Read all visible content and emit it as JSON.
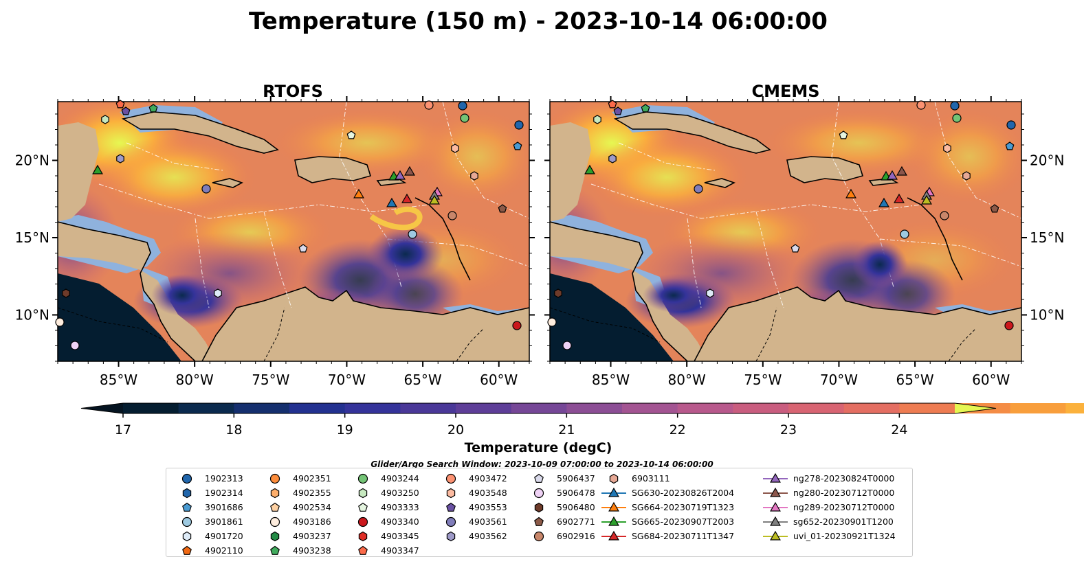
{
  "figure": {
    "title": "Temperature (150 m) - 2023-10-14 06:00:00",
    "search_window": "Glider/Argo Search Window: 2023-10-09 07:00:00 to 2023-10-14 06:00:00"
  },
  "chart_data": [
    {
      "type": "heatmap",
      "title": "RTOFS",
      "xlabel": "",
      "ylabel": "",
      "x_ticks": [
        "85°W",
        "80°W",
        "75°W",
        "70°W",
        "65°W",
        "60°W"
      ],
      "y_ticks": [
        "20°N",
        "15°N",
        "10°N"
      ],
      "lon_range": [
        -89,
        -58
      ],
      "lat_range": [
        7,
        23.8
      ]
    },
    {
      "type": "heatmap",
      "title": "CMEMS",
      "xlabel": "",
      "ylabel": "",
      "x_ticks": [
        "85°W",
        "80°W",
        "75°W",
        "70°W",
        "65°W",
        "60°W"
      ],
      "y_ticks": [
        "20°N",
        "15°N",
        "10°N"
      ],
      "lon_range": [
        -89,
        -58
      ],
      "lat_range": [
        7,
        23.8
      ]
    }
  ],
  "colorbar": {
    "label": "Temperature (degC)",
    "ticks": [
      "17",
      "18",
      "19",
      "20",
      "21",
      "22",
      "23",
      "24"
    ],
    "range": [
      17,
      24.5
    ],
    "step": 0.5,
    "colors": [
      "#041d30",
      "#0b2a4e",
      "#152f6e",
      "#233190",
      "#34339a",
      "#4a3898",
      "#5e3e98",
      "#764797",
      "#8c4e95",
      "#a35492",
      "#b8598c",
      "#c95d7f",
      "#d86472",
      "#e46e62",
      "#ee7c52",
      "#f48c45",
      "#f89e3c",
      "#fbb13c",
      "#f6c646",
      "#eddc55"
    ],
    "extend_min": "#051421",
    "extend_max": "#e6f752"
  },
  "legend": {
    "columns": [
      [
        {
          "label": "1902313",
          "marker": "circle",
          "color": "#2166ac"
        },
        {
          "label": "1902314",
          "marker": "hexagon",
          "color": "#2166ac"
        },
        {
          "label": "3901686",
          "marker": "pentagon",
          "color": "#4a9bd2"
        },
        {
          "label": "3901861",
          "marker": "circle",
          "color": "#9ecae1"
        },
        {
          "label": "4901720",
          "marker": "hexagon",
          "color": "#deebf7"
        },
        {
          "label": "4902110",
          "marker": "pentagon",
          "color": "#f16913"
        }
      ],
      [
        {
          "label": "4902351",
          "marker": "circle",
          "color": "#fd8d3c"
        },
        {
          "label": "4902355",
          "marker": "hexagon",
          "color": "#fdae6b"
        },
        {
          "label": "4902534",
          "marker": "pentagon",
          "color": "#fdd0a2"
        },
        {
          "label": "4903186",
          "marker": "circle",
          "color": "#feedde"
        },
        {
          "label": "4903237",
          "marker": "hexagon",
          "color": "#238b45"
        },
        {
          "label": "4903238",
          "marker": "pentagon",
          "color": "#41ab5d"
        }
      ],
      [
        {
          "label": "4903244",
          "marker": "circle",
          "color": "#74c476"
        },
        {
          "label": "4903250",
          "marker": "hexagon",
          "color": "#c7e9c0"
        },
        {
          "label": "4903333",
          "marker": "pentagon",
          "color": "#e5f5e0"
        },
        {
          "label": "4903340",
          "marker": "circle",
          "color": "#cb181d"
        },
        {
          "label": "4903345",
          "marker": "hexagon",
          "color": "#de2d26"
        },
        {
          "label": "4903347",
          "marker": "pentagon",
          "color": "#fb6a4a"
        }
      ],
      [
        {
          "label": "4903472",
          "marker": "circle",
          "color": "#fc9272"
        },
        {
          "label": "4903548",
          "marker": "hexagon",
          "color": "#fcbba1"
        },
        {
          "label": "4903553",
          "marker": "pentagon",
          "color": "#6a51a3"
        },
        {
          "label": "4903561",
          "marker": "circle",
          "color": "#807dba"
        },
        {
          "label": "4903562",
          "marker": "hexagon",
          "color": "#9e9ac8"
        }
      ],
      [
        {
          "label": "5906437",
          "marker": "pentagon",
          "color": "#dadaeb"
        },
        {
          "label": "5906478",
          "marker": "circle",
          "color": "#efd2f5"
        },
        {
          "label": "5906480",
          "marker": "hexagon",
          "color": "#6e3b2a"
        },
        {
          "label": "6902771",
          "marker": "pentagon",
          "color": "#8c5a48"
        },
        {
          "label": "6902916",
          "marker": "circle",
          "color": "#c8866a"
        }
      ],
      [
        {
          "label": "6903111",
          "marker": "hexagon",
          "color": "#e6a895"
        },
        {
          "label": "SG630-20230826T2004",
          "marker": "triangle",
          "color": "#1f77b4"
        },
        {
          "label": "SG664-20230719T1323",
          "marker": "triangle",
          "color": "#ff7f0e"
        },
        {
          "label": "SG665-20230907T2003",
          "marker": "triangle",
          "color": "#2ca02c"
        },
        {
          "label": "SG684-20230711T1347",
          "marker": "triangle",
          "color": "#d62728"
        }
      ],
      [
        {
          "label": "ng278-20230824T0000",
          "marker": "triangle",
          "color": "#9467bd"
        },
        {
          "label": "ng280-20230712T0000",
          "marker": "triangle",
          "color": "#8c564b"
        },
        {
          "label": "ng289-20230712T0000",
          "marker": "triangle",
          "color": "#e377c2"
        },
        {
          "label": "sg652-20230901T1200",
          "marker": "triangle",
          "color": "#7f7f7f"
        },
        {
          "label": "uvi_01-20230921T1324",
          "marker": "triangle",
          "color": "#bcbd22"
        }
      ]
    ]
  },
  "map_colors": {
    "land": "#d2b48c",
    "shelf": "#8fb2dd",
    "deep": "#041d30"
  }
}
